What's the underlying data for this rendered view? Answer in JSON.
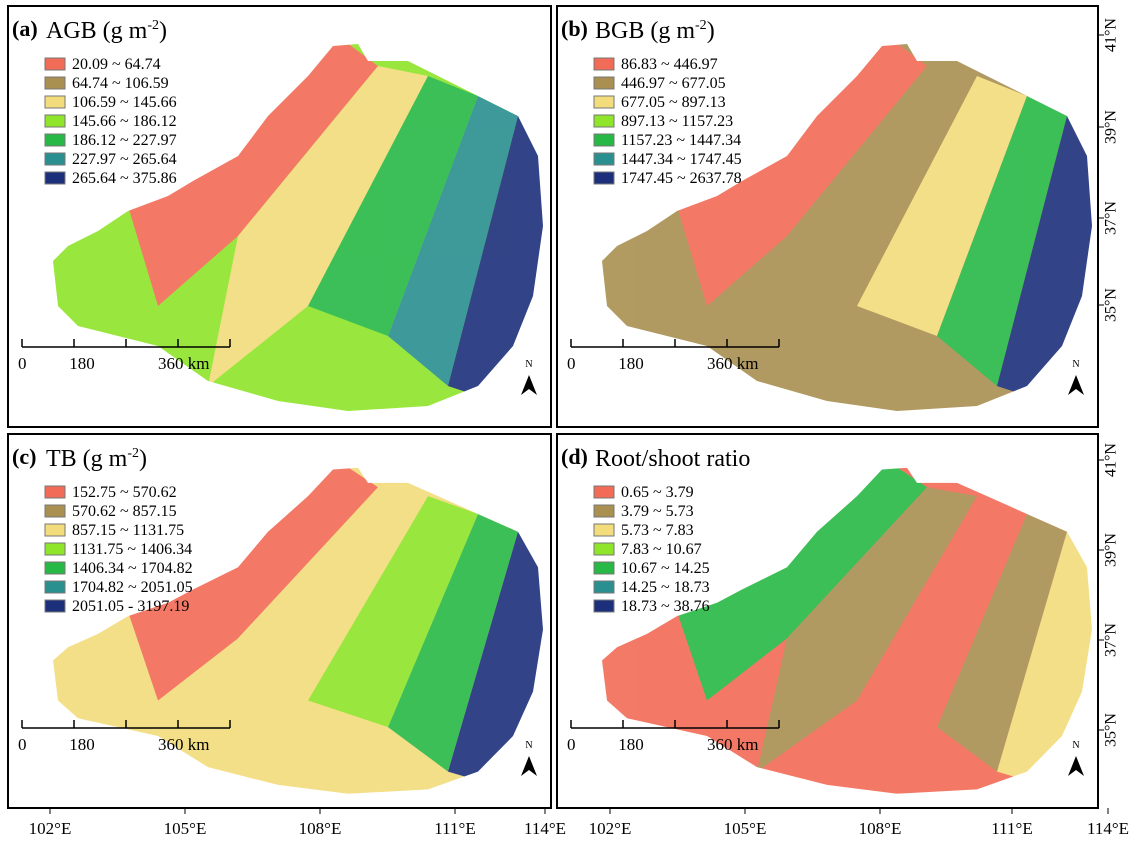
{
  "panels": [
    {
      "label": "(a)",
      "title": "AGB (g m",
      "title_sup": "-2",
      "title_end": ")",
      "legend": [
        {
          "label": "20.09 ~ 64.74",
          "color": "#f26b56"
        },
        {
          "label": "64.74 ~ 106.59",
          "color": "#a99050"
        },
        {
          "label": "106.59 ~ 145.66",
          "color": "#f2dc7c"
        },
        {
          "label": "145.66 ~ 186.12",
          "color": "#8ee52a"
        },
        {
          "label": "186.12 ~ 227.97",
          "color": "#28b846"
        },
        {
          "label": "227.97 ~ 265.64",
          "color": "#2a8f8f"
        },
        {
          "label": "265.64 ~ 375.86",
          "color": "#1c2f7a"
        }
      ]
    },
    {
      "label": "(b)",
      "title": "BGB (g m",
      "title_sup": "-2",
      "title_end": ")",
      "legend": [
        {
          "label": "86.83 ~ 446.97",
          "color": "#f26b56"
        },
        {
          "label": "446.97 ~ 677.05",
          "color": "#a99050"
        },
        {
          "label": "677.05 ~ 897.13",
          "color": "#f2dc7c"
        },
        {
          "label": "897.13 ~ 1157.23",
          "color": "#8ee52a"
        },
        {
          "label": "1157.23 ~ 1447.34",
          "color": "#28b846"
        },
        {
          "label": "1447.34 ~ 1747.45",
          "color": "#2a8f8f"
        },
        {
          "label": "1747.45 ~ 2637.78",
          "color": "#1c2f7a"
        }
      ]
    },
    {
      "label": "(c)",
      "title": "TB (g m",
      "title_sup": "-2",
      "title_end": ")",
      "legend": [
        {
          "label": "152.75 ~ 570.62",
          "color": "#f26b56"
        },
        {
          "label": "570.62 ~ 857.15",
          "color": "#a99050"
        },
        {
          "label": "857.15 ~ 1131.75",
          "color": "#f2dc7c"
        },
        {
          "label": "1131.75 ~ 1406.34",
          "color": "#8ee52a"
        },
        {
          "label": "1406.34 ~ 1704.82",
          "color": "#28b846"
        },
        {
          "label": "1704.82 ~ 2051.05",
          "color": "#2a8f8f"
        },
        {
          "label": "2051.05 - 3197.19",
          "color": "#1c2f7a"
        }
      ]
    },
    {
      "label": "(d)",
      "title": "Root/shoot ratio",
      "legend": [
        {
          "label": "0.65 ~ 3.79",
          "color": "#f26b56"
        },
        {
          "label": "3.79 ~ 5.73",
          "color": "#a99050"
        },
        {
          "label": "5.73 ~ 7.83",
          "color": "#f2dc7c"
        },
        {
          "label": "7.83 ~ 10.67",
          "color": "#8ee52a"
        },
        {
          "label": "10.67 ~ 14.25",
          "color": "#28b846"
        },
        {
          "label": "14.25 ~ 18.73",
          "color": "#2a8f8f"
        },
        {
          "label": "18.73 ~ 38.76",
          "color": "#1c2f7a"
        }
      ]
    }
  ],
  "scale_labels": [
    "0",
    "180",
    "360 km"
  ],
  "north": "N",
  "latitude_labels": [
    "41°N",
    "39°N",
    "37°N",
    "35°N"
  ],
  "longitude_labels": [
    "102°E",
    "105°E",
    "108°E",
    "111°E",
    "114°E"
  ]
}
